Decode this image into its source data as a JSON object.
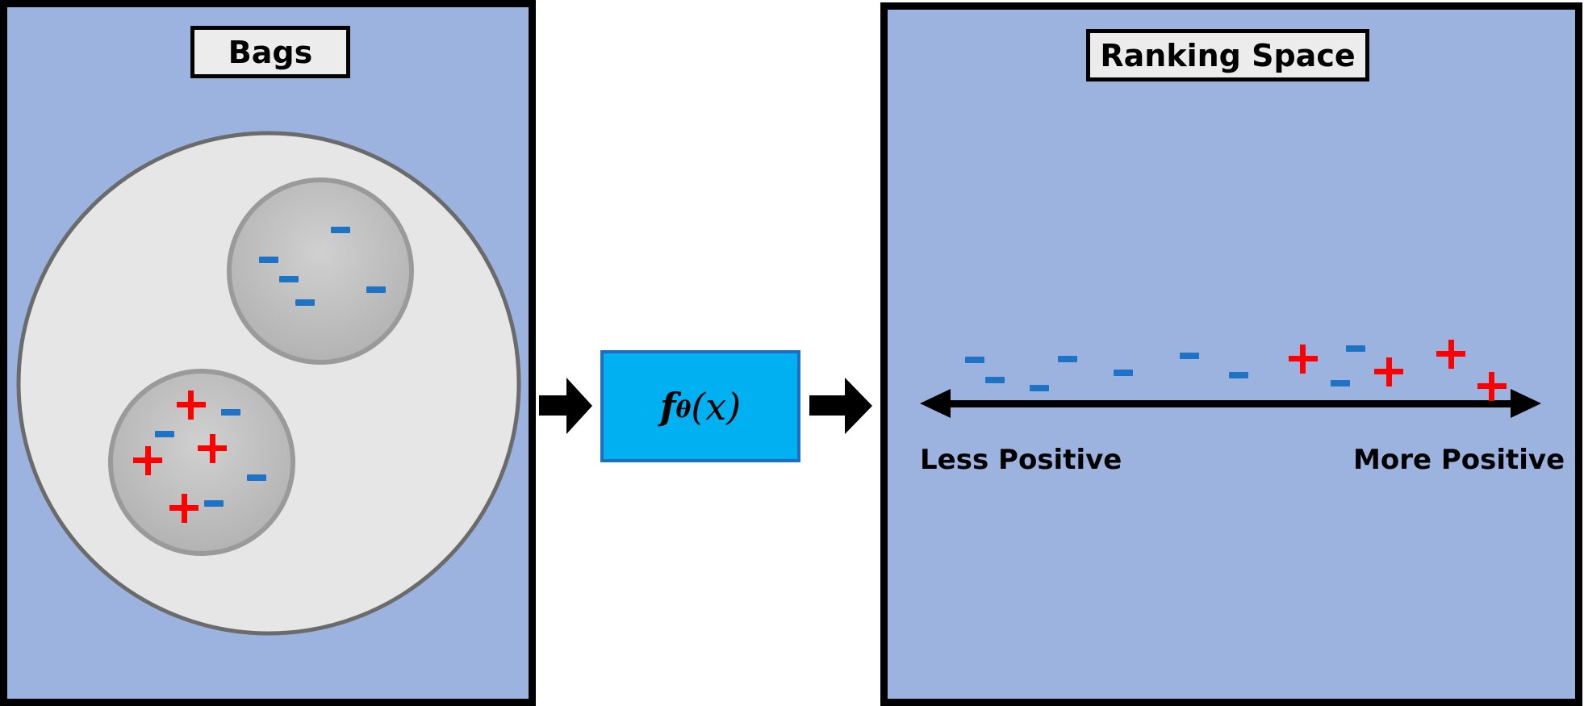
{
  "bags_panel": {
    "title": "Bags",
    "inner_bag_top": {
      "marks": [
        "-",
        "-",
        "-",
        "-",
        "-"
      ]
    },
    "inner_bag_bottom": {
      "marks": [
        "+",
        "+",
        "+",
        "+",
        "-",
        "-",
        "-",
        "-"
      ]
    }
  },
  "function_box": {
    "f": "f",
    "subscript": "θ",
    "arg": "(x)"
  },
  "ranking_panel": {
    "title": "Ranking Space",
    "axis_left_label": "Less Positive",
    "axis_right_label": "More Positive",
    "marks": [
      "-",
      "-",
      "-",
      "-",
      "-",
      "-",
      "-",
      "-",
      "+",
      "-",
      "-",
      "+",
      "+",
      "+"
    ]
  },
  "colors": {
    "panel_bg": "#9cb3e0",
    "outer_circle": "#e6e6e6",
    "inner_circle": "#bfbfbf",
    "negative": "#1f73c4",
    "positive": "#ff0000",
    "function_box": "#00b0f0"
  }
}
